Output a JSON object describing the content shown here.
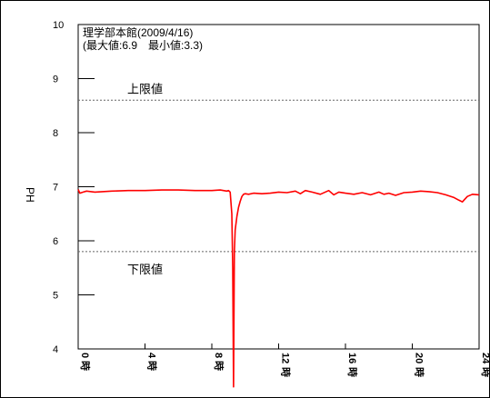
{
  "chart_data": {
    "type": "line",
    "title": "理学部本館(2009/4/16)",
    "subtitle": "(最大値:6.9　最小値:3.3)",
    "xlabel": "",
    "ylabel": "PH",
    "xlim": [
      0,
      24
    ],
    "ylim": [
      4,
      10
    ],
    "grid": false,
    "y_ticks": [
      "4",
      "5",
      "6",
      "7",
      "8",
      "9",
      "10"
    ],
    "x_ticks": [
      {
        "value": 0,
        "label": "0",
        "suffix": "時"
      },
      {
        "value": 4,
        "label": "4",
        "suffix": "時"
      },
      {
        "value": 8,
        "label": "8",
        "suffix": "時"
      },
      {
        "value": 12,
        "label": "12",
        "suffix": "時"
      },
      {
        "value": 16,
        "label": "16",
        "suffix": "時"
      },
      {
        "value": 20,
        "label": "20",
        "suffix": "時"
      },
      {
        "value": 24,
        "label": "24",
        "suffix": "時"
      }
    ],
    "reference_lines": [
      {
        "name": "上限値",
        "value": 8.6
      },
      {
        "name": "下限値",
        "value": 5.8
      }
    ],
    "series": [
      {
        "color": "#ff0000",
        "x": [
          0,
          0.1,
          0.3,
          0.5,
          1,
          2,
          3,
          4,
          5,
          6,
          7,
          8,
          8.5,
          8.9,
          9.0,
          9.1,
          9.2,
          9.25,
          9.3,
          9.35,
          9.4,
          9.5,
          9.6,
          9.7,
          9.8,
          9.9,
          10.0,
          10.2,
          10.5,
          11,
          11.5,
          12,
          12.5,
          13,
          13.3,
          13.6,
          14,
          14.5,
          15,
          15.3,
          15.6,
          16,
          16.5,
          17,
          17.5,
          18,
          18.3,
          18.6,
          19,
          19.5,
          20,
          20.5,
          21,
          21.5,
          22,
          22.5,
          22.8,
          23.0,
          23.3,
          23.6,
          24
        ],
        "y": [
          6.95,
          6.88,
          6.9,
          6.92,
          6.9,
          6.92,
          6.93,
          6.93,
          6.94,
          6.94,
          6.93,
          6.93,
          6.94,
          6.92,
          6.93,
          6.9,
          6.5,
          5.5,
          3.3,
          5.8,
          6.2,
          6.45,
          6.62,
          6.73,
          6.82,
          6.86,
          6.87,
          6.86,
          6.88,
          6.87,
          6.88,
          6.9,
          6.89,
          6.92,
          6.87,
          6.93,
          6.9,
          6.86,
          6.93,
          6.85,
          6.9,
          6.88,
          6.86,
          6.89,
          6.85,
          6.9,
          6.86,
          6.88,
          6.84,
          6.89,
          6.9,
          6.92,
          6.91,
          6.89,
          6.85,
          6.8,
          6.75,
          6.72,
          6.82,
          6.86,
          6.85
        ]
      }
    ]
  }
}
